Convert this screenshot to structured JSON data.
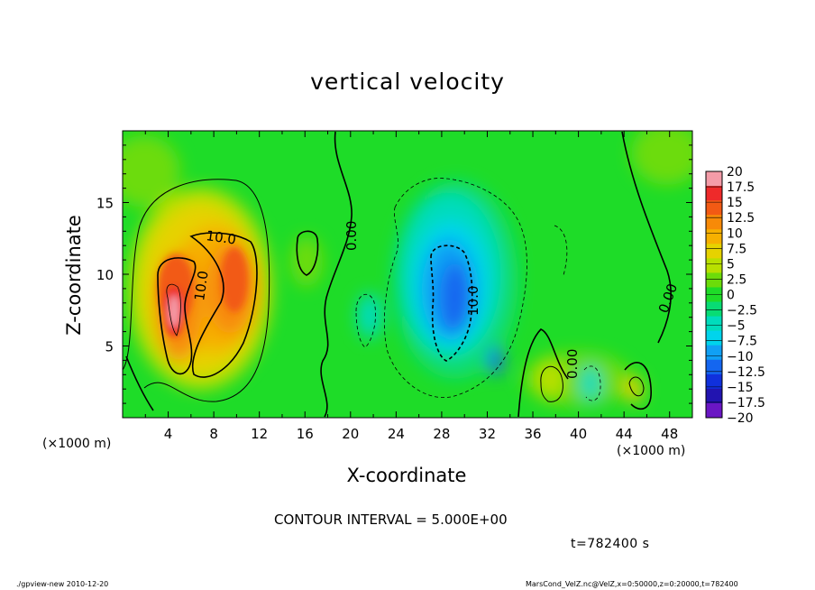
{
  "chart_data": {
    "type": "heatmap",
    "title": "vertical velocity",
    "xlabel": "X-coordinate",
    "ylabel": "Z-coordinate",
    "x_unit_label": "(×1000 m)",
    "x_unit_label_right": "(×1000 m)",
    "xlim": [
      0,
      50
    ],
    "ylim": [
      0,
      20
    ],
    "x_ticks": [
      "4",
      "8",
      "12",
      "16",
      "20",
      "24",
      "28",
      "32",
      "36",
      "40",
      "44",
      "48"
    ],
    "y_ticks": [
      "5",
      "10",
      "15"
    ],
    "colorbar": {
      "labels": [
        "20",
        "17.5",
        "15",
        "12.5",
        "10",
        "7.5",
        "5",
        "2.5",
        "0",
        "−2.5",
        "−5",
        "−7.5",
        "−10",
        "−12.5",
        "−15",
        "−17.5",
        "−20"
      ],
      "range": [
        -20,
        20
      ],
      "step": 2.5,
      "colors": [
        "#f49ca8",
        "#ee2a2a",
        "#f25a14",
        "#f78a08",
        "#f6b000",
        "#e6d200",
        "#b8e000",
        "#6cdc0a",
        "#1edc28",
        "#08dc74",
        "#00dcbc",
        "#00d4ec",
        "#10a0f4",
        "#1466f0",
        "#1030dc",
        "#2214b0",
        "#6a16c4"
      ]
    },
    "contour_labels": [
      "10.0",
      "10.0",
      "0.00",
      "10.0",
      "0.00",
      "0.00"
    ],
    "features": [
      {
        "kind": "updraft",
        "x_center": 4.5,
        "z_center": 8,
        "peak_value": 20
      },
      {
        "kind": "updraft",
        "x_center": 9.5,
        "z_center": 9,
        "peak_value": 12
      },
      {
        "kind": "downdraft",
        "x_center": 29,
        "z_center": 8.5,
        "peak_value": -12
      }
    ]
  },
  "contour_interval": "CONTOUR INTERVAL = 5.000E+00",
  "time_label": "t=782400 s",
  "footer": {
    "left": "./gpview-new   2010-12-20",
    "right": "MarsCond_VelZ.nc@VelZ,x=0:50000,z=0:20000,t=782400"
  }
}
